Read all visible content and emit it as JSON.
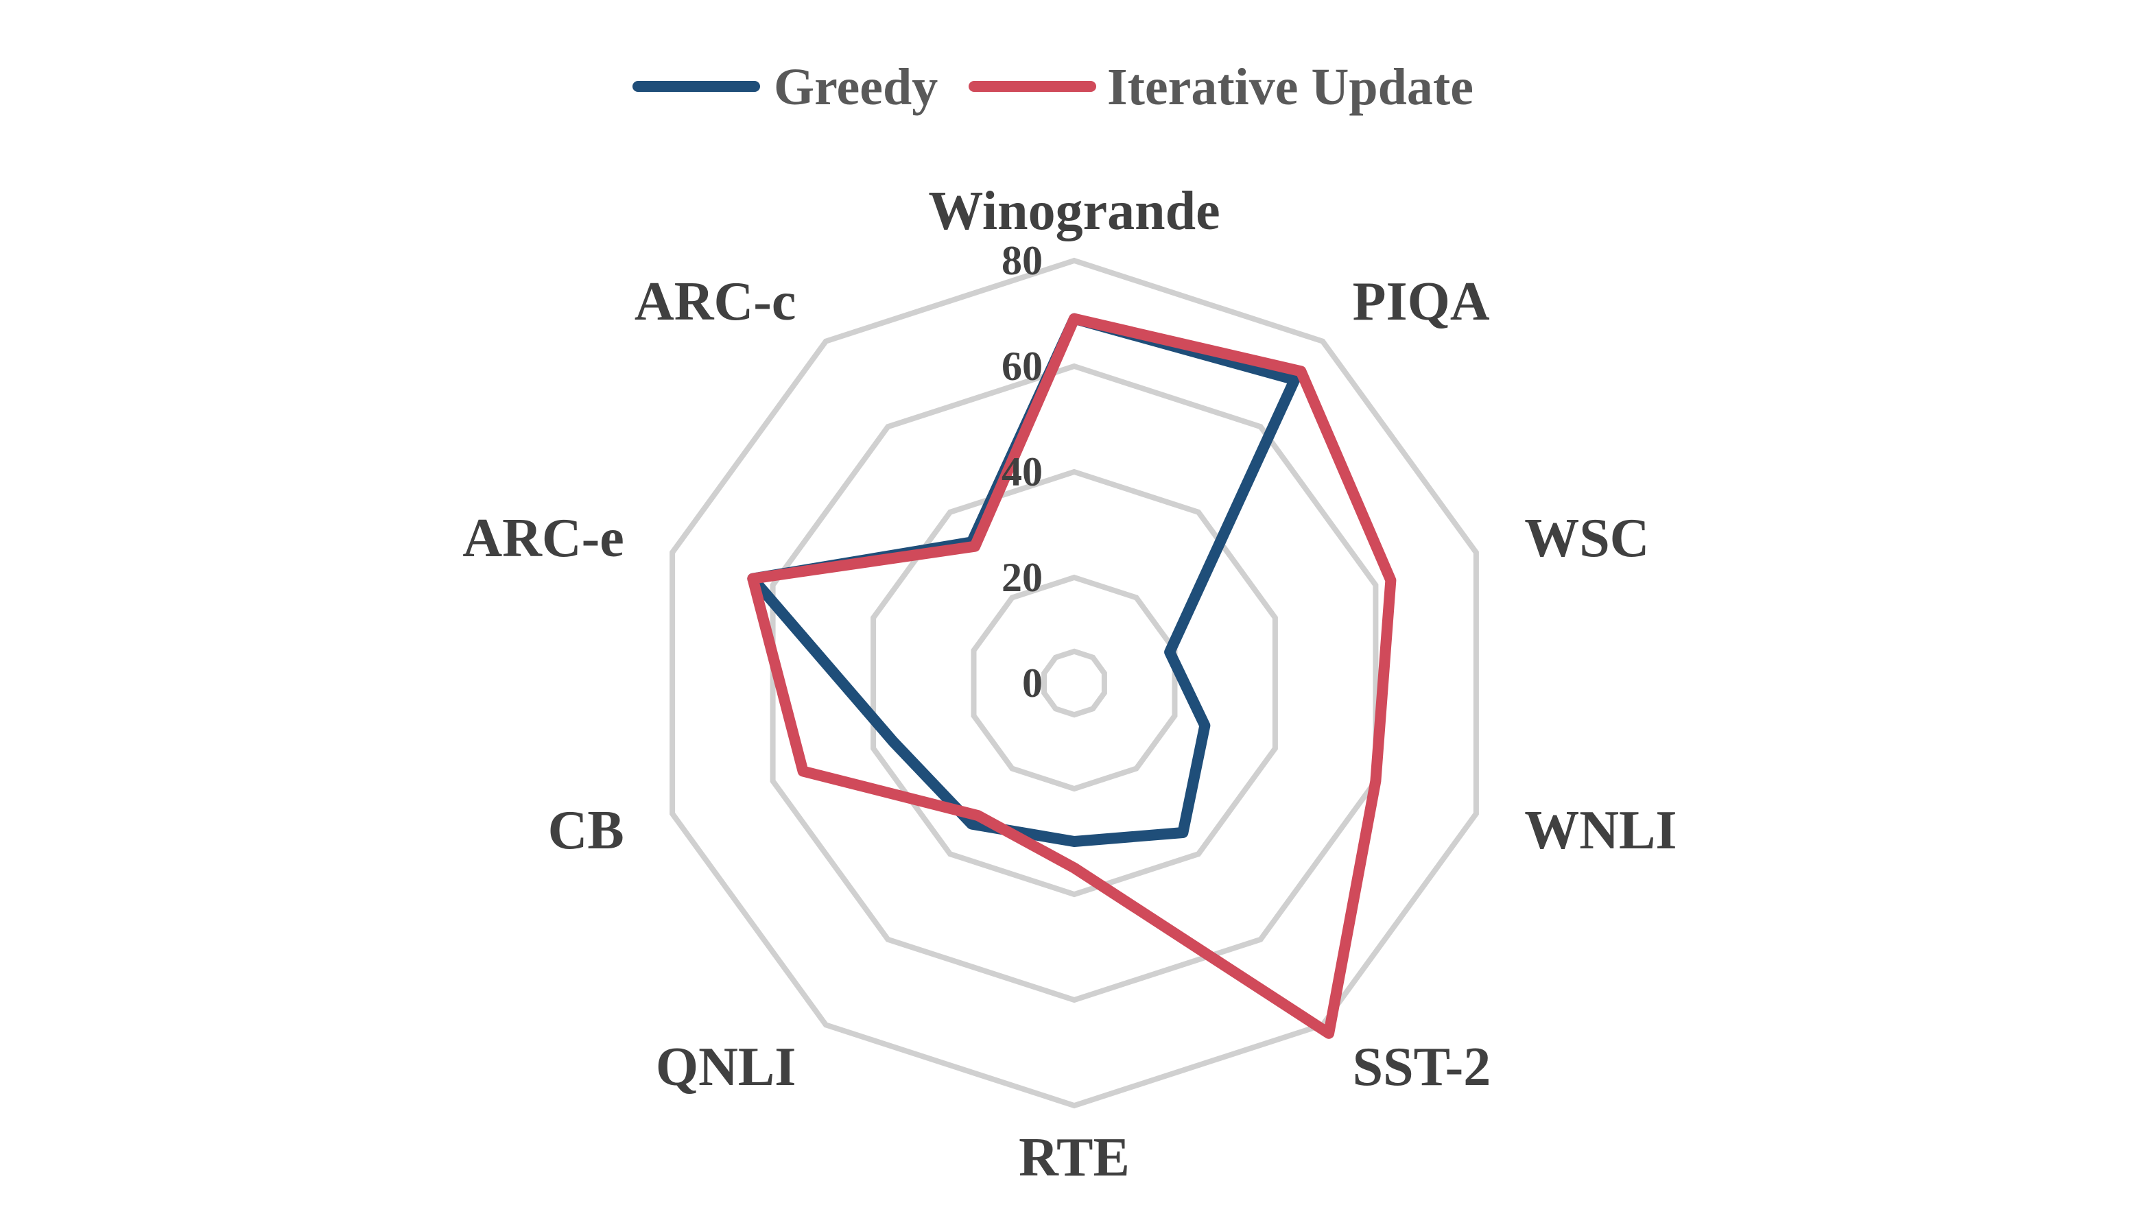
{
  "chart_data": {
    "type": "radar",
    "categories": [
      "Winogrande",
      "PIQA",
      "WSC",
      "WNLI",
      "SST-2",
      "RTE",
      "QNLI",
      "CB",
      "ARC-e",
      "ARC-c"
    ],
    "series": [
      {
        "name": "Greedy",
        "color": "#1f4e79",
        "values": [
          69,
          71,
          19,
          26,
          35,
          30,
          33,
          36,
          64,
          33
        ]
      },
      {
        "name": "Iterative Update",
        "color": "#d04a5a",
        "values": [
          69,
          73,
          63,
          60,
          82,
          35,
          31,
          54,
          64,
          32
        ]
      }
    ],
    "rlim": [
      0,
      80
    ],
    "ticks": [
      "0",
      "20",
      "40",
      "60",
      "80"
    ],
    "grid": true,
    "legend_position": "top"
  }
}
